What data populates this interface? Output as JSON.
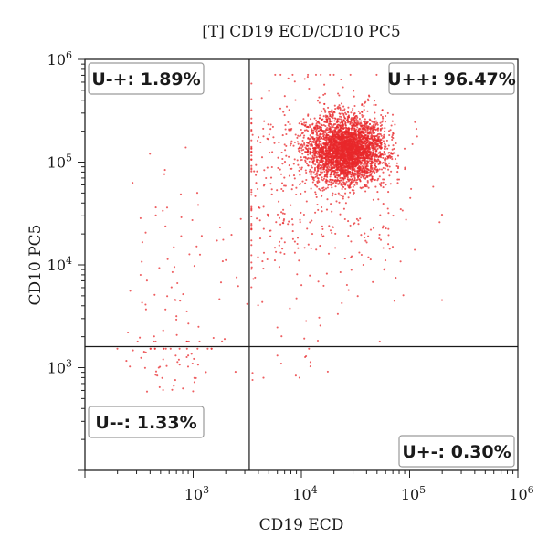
{
  "chart_data": {
    "type": "scatter",
    "title": "[T] CD19 ECD/CD10 PC5",
    "xlabel": "CD19 ECD",
    "ylabel": "CD10 PC5",
    "x_scale": "log",
    "y_scale": "log",
    "xlim": [
      100,
      1000000
    ],
    "ylim": [
      100,
      1000000
    ],
    "x_ticks": [
      {
        "base": "10",
        "exp": "3",
        "value": 1000
      },
      {
        "base": "10",
        "exp": "4",
        "value": 10000
      },
      {
        "base": "10",
        "exp": "5",
        "value": 100000
      },
      {
        "base": "10",
        "exp": "6",
        "value": 1000000
      }
    ],
    "y_ticks": [
      {
        "base": "10",
        "exp": "3",
        "value": 1000
      },
      {
        "base": "10",
        "exp": "4",
        "value": 10000
      },
      {
        "base": "10",
        "exp": "5",
        "value": 100000
      },
      {
        "base": "10",
        "exp": "6",
        "value": 1000000
      }
    ],
    "gates": {
      "x": 3300,
      "y": 1600
    },
    "quadrants": [
      {
        "label": "U-+: 1.89%",
        "position": "top-left",
        "percent": 1.89
      },
      {
        "label": "U++: 96.47%",
        "position": "top-right",
        "percent": 96.47
      },
      {
        "label": "U--: 1.33%",
        "position": "bottom-left",
        "percent": 1.33
      },
      {
        "label": "U+-: 0.30%",
        "position": "bottom-right",
        "percent": 0.3
      }
    ],
    "point_color": "#e8282b",
    "grid": false
  }
}
